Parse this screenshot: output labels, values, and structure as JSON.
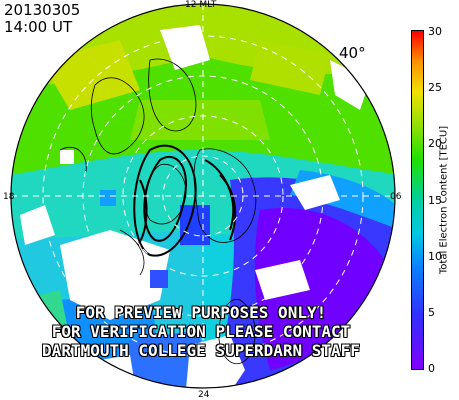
{
  "header": {
    "date": "20130305",
    "time": "14:00 UT"
  },
  "map": {
    "latitude_label": "40°",
    "mlt_labels": {
      "top": "12 MLT",
      "left": "18",
      "right": "06",
      "bottom": "24"
    }
  },
  "colorbar": {
    "title": "Total Electron Content [TECU]",
    "ticks": [
      "0",
      "5",
      "10",
      "15",
      "20",
      "25",
      "30"
    ],
    "range": [
      0,
      30
    ],
    "colors": [
      "#8000ff",
      "#3030ff",
      "#0a80ff",
      "#00c8e0",
      "#00d0a0",
      "#20e000",
      "#90e000",
      "#f0e000",
      "#ff9000",
      "#ff0000"
    ]
  },
  "watermark": {
    "line1": "FOR PREVIEW PURPOSES ONLY!",
    "line2": "FOR VERIFICATION PLEASE CONTACT",
    "line3": "DARTMOUTH COLLEGE SUPERDARN STAFF"
  }
}
